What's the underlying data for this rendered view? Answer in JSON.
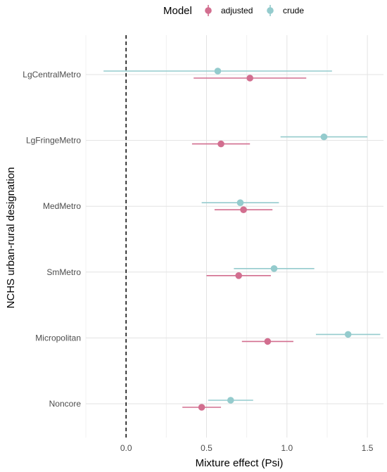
{
  "chart_data": {
    "type": "scatter",
    "title": "",
    "xlabel": "Mixture effect (Psi)",
    "ylabel": "NCHS urban-rural designation",
    "xlim": [
      -0.25,
      1.6
    ],
    "x_ticks": [
      "0.0",
      "0.5",
      "1.0",
      "1.5"
    ],
    "x_tick_values": [
      0.0,
      0.5,
      1.0,
      1.5
    ],
    "categories": [
      "LgCentralMetro",
      "LgFringeMetro",
      "MedMetro",
      "SmMetro",
      "Micropolitan",
      "Noncore"
    ],
    "reference_line": 0,
    "grid": true,
    "legend": {
      "title": "Model",
      "position": "top"
    },
    "series": [
      {
        "name": "adjusted",
        "color": "#d26e8f",
        "estimate": [
          0.77,
          0.59,
          0.73,
          0.7,
          0.88,
          0.47
        ],
        "lower": [
          0.42,
          0.41,
          0.55,
          0.5,
          0.72,
          0.35
        ],
        "upper": [
          1.12,
          0.77,
          0.91,
          0.9,
          1.04,
          0.59
        ]
      },
      {
        "name": "crude",
        "color": "#94cbcd",
        "estimate": [
          0.57,
          1.23,
          0.71,
          0.92,
          1.38,
          0.65
        ],
        "lower": [
          -0.14,
          0.96,
          0.47,
          0.67,
          1.18,
          0.51
        ],
        "upper": [
          1.28,
          1.5,
          0.95,
          1.17,
          1.58,
          0.79
        ]
      }
    ]
  }
}
